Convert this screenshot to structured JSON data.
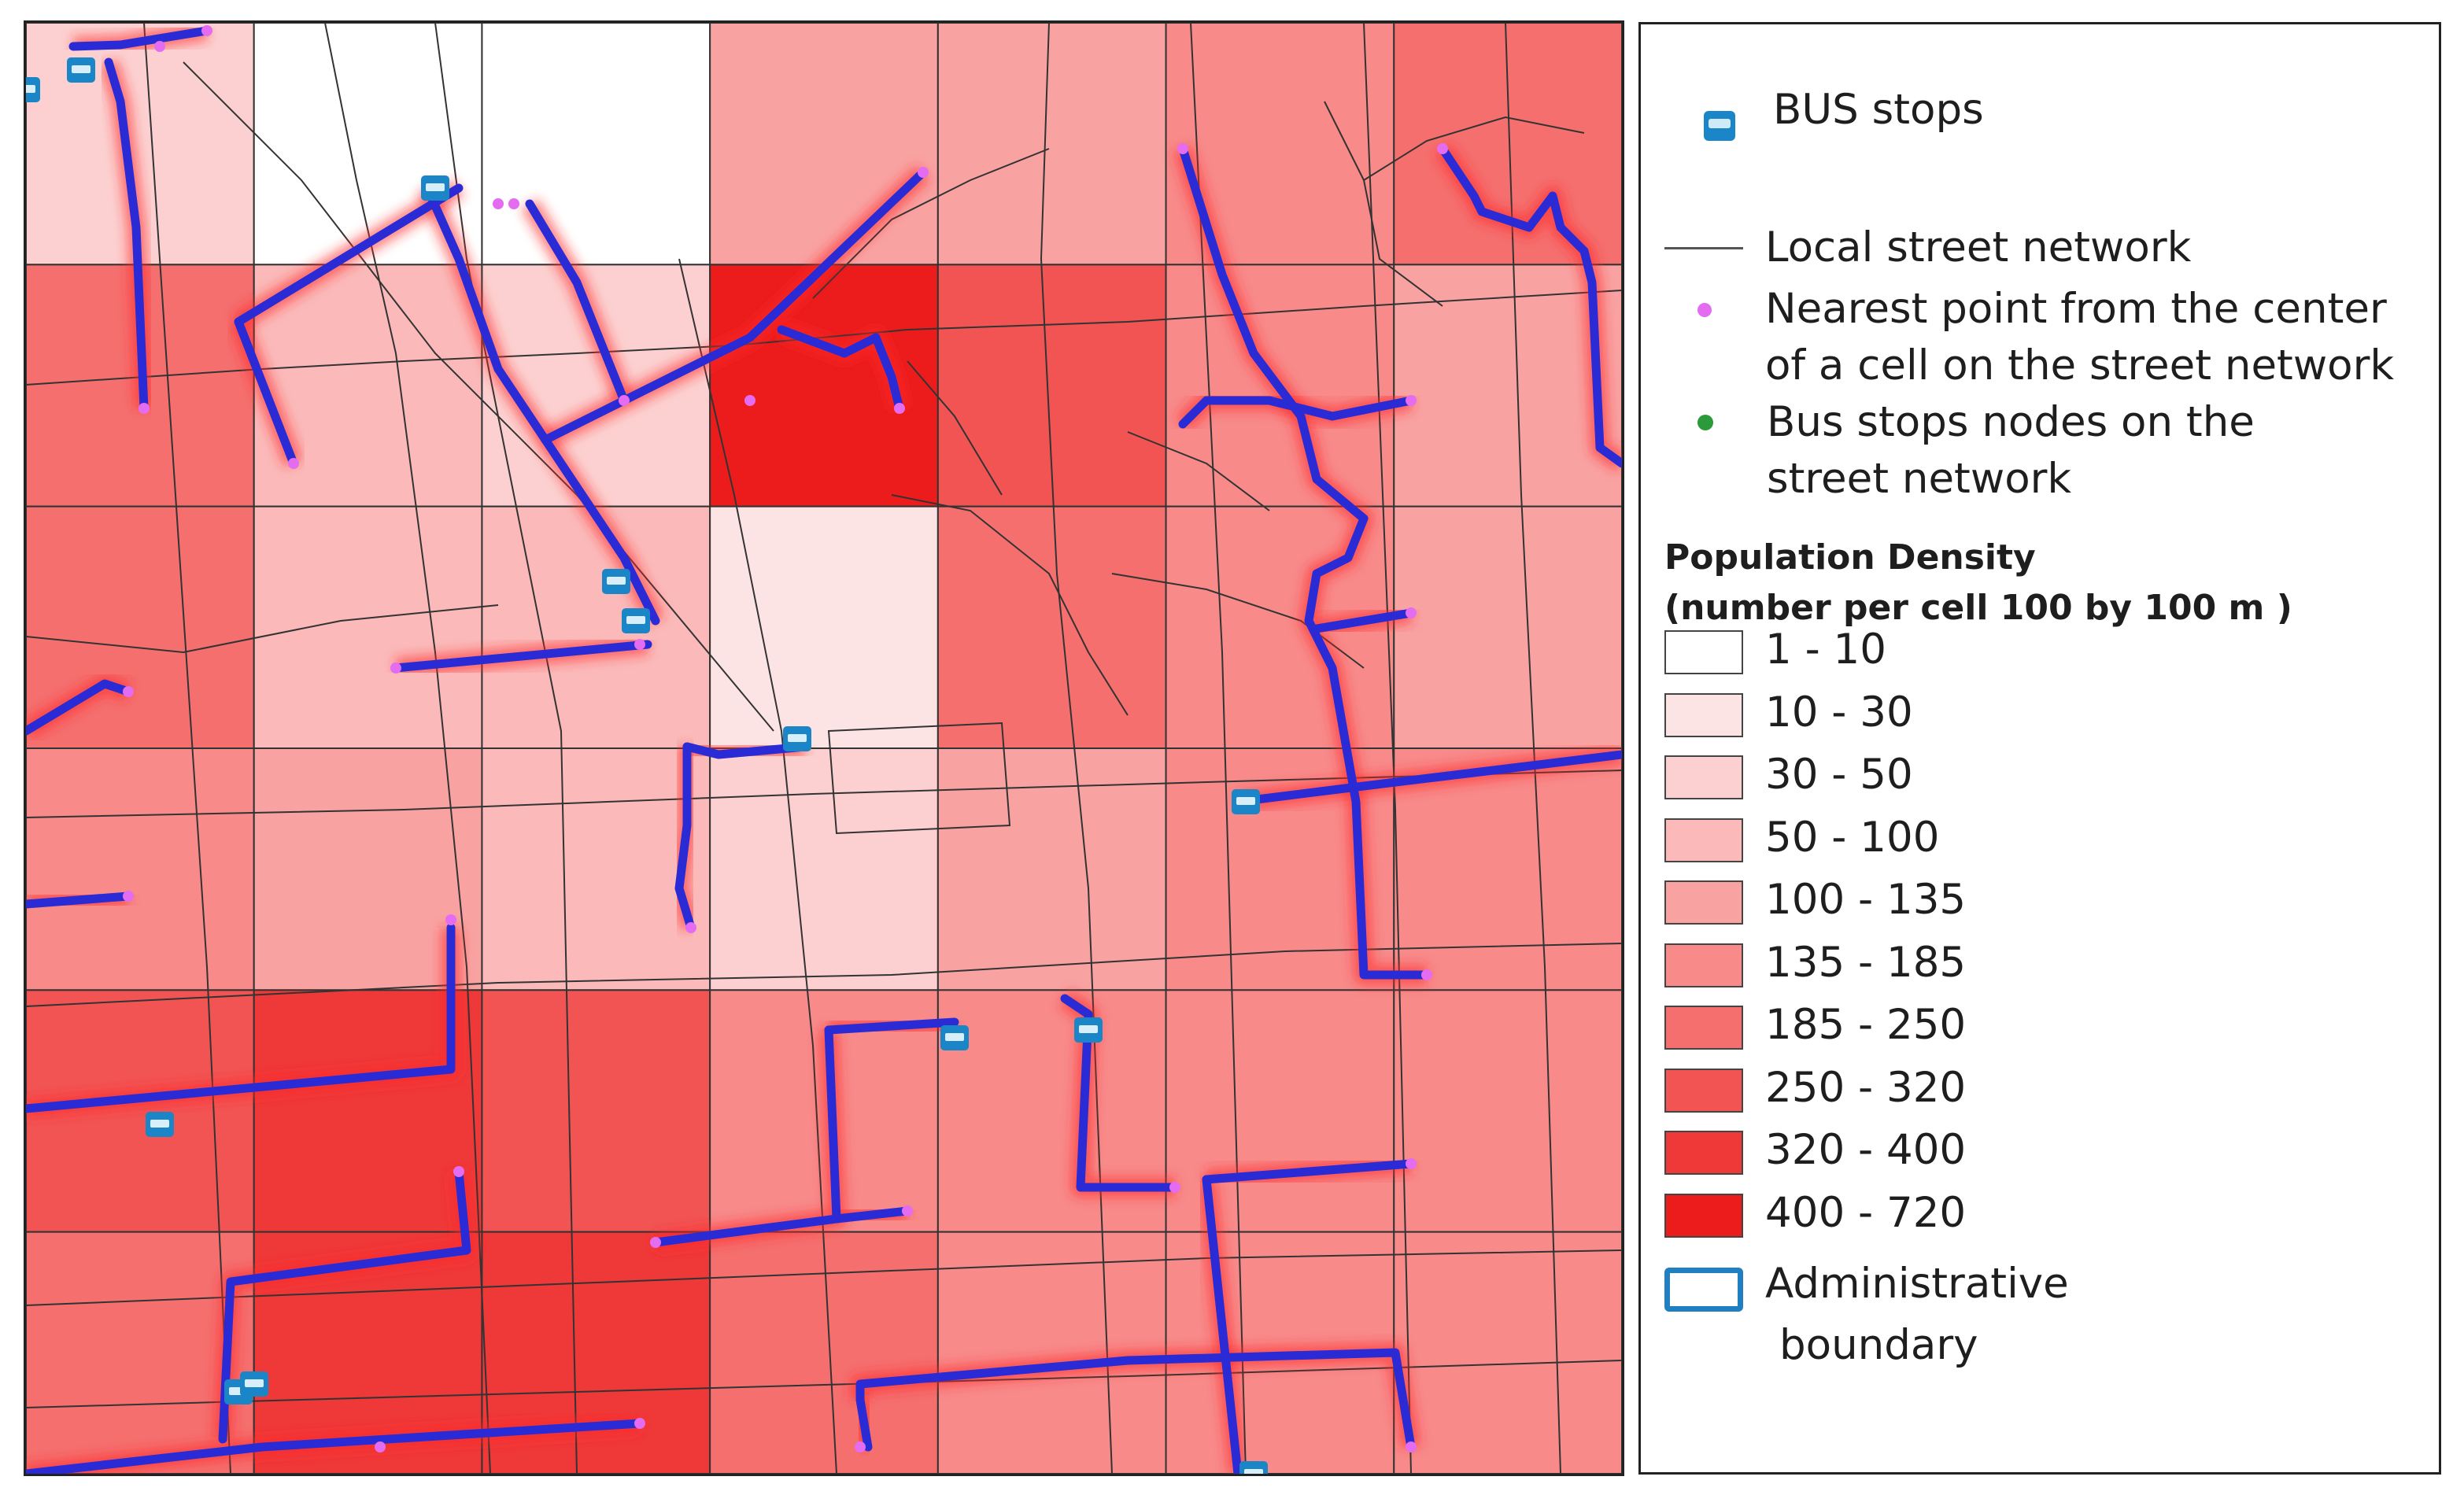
{
  "legend": {
    "bus_stops": "BUS stops",
    "local_street": "Local street network",
    "nearest_point_line1": "Nearest point from the center",
    "nearest_point_line2": "of a cell on the street network",
    "bus_nodes_line1": "Bus stops nodes on the",
    "bus_nodes_line2": "street network",
    "density_title_1": "Population Density",
    "density_title_2": "(number per cell 100 by 100 m )",
    "classes": [
      {
        "label": "1 - 10",
        "color": "#ffffff"
      },
      {
        "label": "10 - 30",
        "color": "#fde4e4"
      },
      {
        "label": "30 - 50",
        "color": "#fcd0d0"
      },
      {
        "label": "50 - 100",
        "color": "#fbb9b9"
      },
      {
        "label": "100 - 135",
        "color": "#f9a2a2"
      },
      {
        "label": "135 - 185",
        "color": "#f88a8a"
      },
      {
        "label": "185 - 250",
        "color": "#f56f6f"
      },
      {
        "label": "250 - 320",
        "color": "#f25454"
      },
      {
        "label": "320 - 400",
        "color": "#ef3838"
      },
      {
        "label": "400 - 720",
        "color": "#ec1c1c"
      }
    ],
    "admin_line1": "Administrative",
    "admin_line2": "boundary"
  },
  "colors": {
    "route": "#2b2bd6",
    "route_glow": "#ff2a2a",
    "nearest_point": "#e36cf0",
    "bus_node": "#2a9a3a",
    "admin_boundary": "#1f7fc0",
    "street": "#333333"
  },
  "icons": [
    "bus-stop-icon",
    "street-line-icon",
    "nearest-point-icon",
    "bus-node-icon"
  ],
  "map": {
    "grid_rows": 6,
    "grid_cols": 7,
    "cell_classes": [
      [
        2,
        0,
        0,
        4,
        4,
        5,
        6
      ],
      [
        6,
        3,
        2,
        9,
        7,
        5,
        4
      ],
      [
        6,
        3,
        3,
        1,
        6,
        5,
        4
      ],
      [
        5,
        4,
        3,
        2,
        4,
        5,
        5
      ],
      [
        7,
        8,
        7,
        5,
        5,
        5,
        5
      ],
      [
        6,
        8,
        8,
        6,
        5,
        5,
        5
      ]
    ]
  }
}
